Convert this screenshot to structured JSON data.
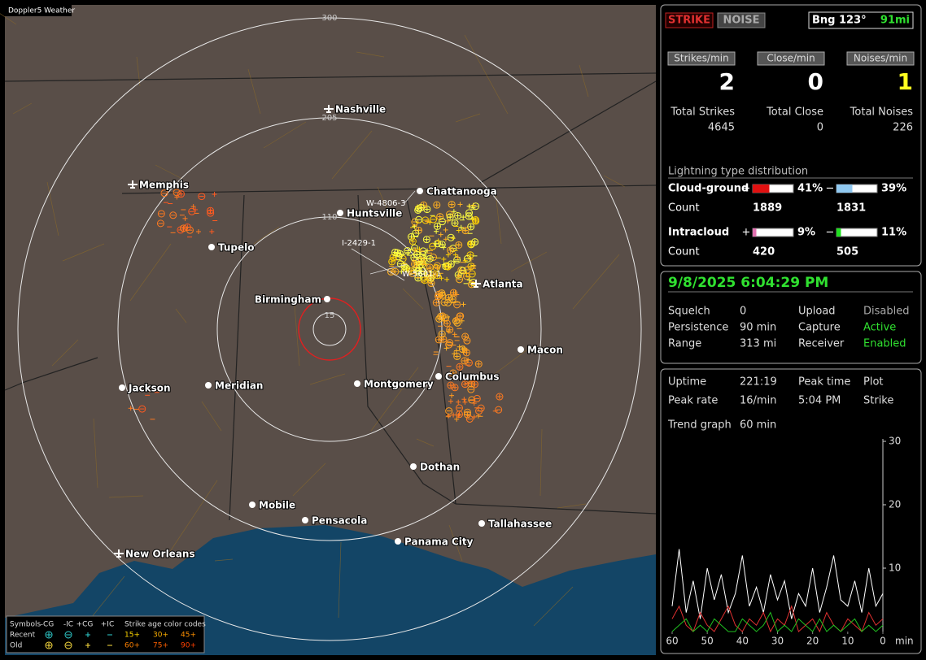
{
  "map": {
    "title": "Doppler5 Weather",
    "ring_labels": [
      "300",
      "205",
      "110",
      "15"
    ],
    "cities": [
      "Nashville",
      "Memphis",
      "Chattanooga",
      "Huntsville",
      "Tupelo",
      "Birmingham",
      "Atlanta",
      "Macon",
      "Jackson",
      "Meridian",
      "Montgomery",
      "Columbus",
      "Dothan",
      "Mobile",
      "Pensacola",
      "Tallahassee",
      "Panama City",
      "New Orleans"
    ],
    "annotations": [
      "W-4806-3",
      "I-2429-1",
      "W-5601-1"
    ],
    "legend": {
      "symbols": "Symbols",
      "types": [
        "-CG",
        "-IC",
        "+CG",
        "+IC"
      ],
      "age_title": "Strike age color codes",
      "rows": [
        "Recent",
        "Old"
      ],
      "recent_ages": [
        "15+",
        "30+",
        "45+"
      ],
      "old_ages": [
        "60+",
        "75+",
        "90+"
      ]
    }
  },
  "status": {
    "mode": "STRIKE",
    "noise": "NOISE",
    "bearing": "Bng 123°",
    "distance": "91mi",
    "rates": [
      {
        "label": "Strikes/min",
        "value": 2
      },
      {
        "label": "Close/min",
        "value": 0
      },
      {
        "label": "Noises/min",
        "value": 1
      }
    ],
    "totals": [
      {
        "label": "Total Strikes",
        "value": 4645
      },
      {
        "label": "Total Close",
        "value": 0
      },
      {
        "label": "Total Noises",
        "value": 226
      }
    ],
    "distribution": {
      "title": "Lightning type distribution",
      "count_label": "Count",
      "types": [
        {
          "name": "Cloud-ground",
          "positive": {
            "sign": "+",
            "percent": 41,
            "label": "41%",
            "count": 1889
          },
          "negative": {
            "sign": "−",
            "percent": 39,
            "label": "39%",
            "count": 1831
          }
        },
        {
          "name": "Intracloud",
          "positive": {
            "sign": "+",
            "percent": 9,
            "label": "9%",
            "count": 420
          },
          "negative": {
            "sign": "−",
            "percent": 11,
            "label": "11%",
            "count": 505
          }
        }
      ]
    }
  },
  "settings": {
    "datetime": "9/8/2025 6:04:29 PM",
    "rows": [
      [
        "Squelch",
        "0",
        "Upload",
        "Disabled"
      ],
      [
        "Persistence",
        "90 min",
        "Capture",
        "Active"
      ],
      [
        "Range",
        "313 mi",
        "Receiver",
        "Enabled"
      ]
    ]
  },
  "trend": {
    "rows": [
      [
        "Uptime",
        "221:19",
        "Peak time",
        "Plot"
      ],
      [
        "Peak rate",
        "16/min",
        "5:04 PM",
        "Strike"
      ]
    ],
    "graph_label": "Trend graph",
    "graph_span": "60 min",
    "ylim": [
      0,
      30
    ],
    "yticks": [
      10,
      20,
      30
    ],
    "xlim": [
      60,
      0
    ],
    "xticks": [
      60,
      50,
      40,
      30,
      20,
      10,
      0
    ],
    "x_unit": "min",
    "x": [
      60,
      58,
      56,
      54,
      52,
      50,
      48,
      46,
      44,
      42,
      40,
      38,
      36,
      34,
      32,
      30,
      28,
      26,
      24,
      22,
      20,
      18,
      16,
      14,
      12,
      10,
      8,
      6,
      4,
      2,
      0
    ],
    "series": [
      {
        "color": "#ffffff",
        "values": [
          4,
          13,
          3,
          8,
          2,
          10,
          5,
          9,
          3,
          6,
          12,
          4,
          7,
          3,
          9,
          5,
          8,
          2,
          6,
          4,
          10,
          3,
          7,
          12,
          5,
          4,
          8,
          3,
          10,
          4,
          6
        ]
      },
      {
        "color": "#e03030",
        "values": [
          2,
          4,
          1,
          0,
          3,
          1,
          0,
          2,
          4,
          1,
          0,
          2,
          1,
          3,
          0,
          2,
          1,
          4,
          0,
          1,
          2,
          0,
          3,
          1,
          0,
          2,
          1,
          0,
          3,
          1,
          2
        ]
      },
      {
        "color": "#20c020",
        "values": [
          0,
          1,
          2,
          0,
          1,
          0,
          2,
          1,
          0,
          0,
          2,
          1,
          0,
          1,
          3,
          0,
          1,
          0,
          2,
          1,
          0,
          2,
          0,
          1,
          0,
          1,
          2,
          0,
          1,
          0,
          1
        ]
      }
    ]
  }
}
